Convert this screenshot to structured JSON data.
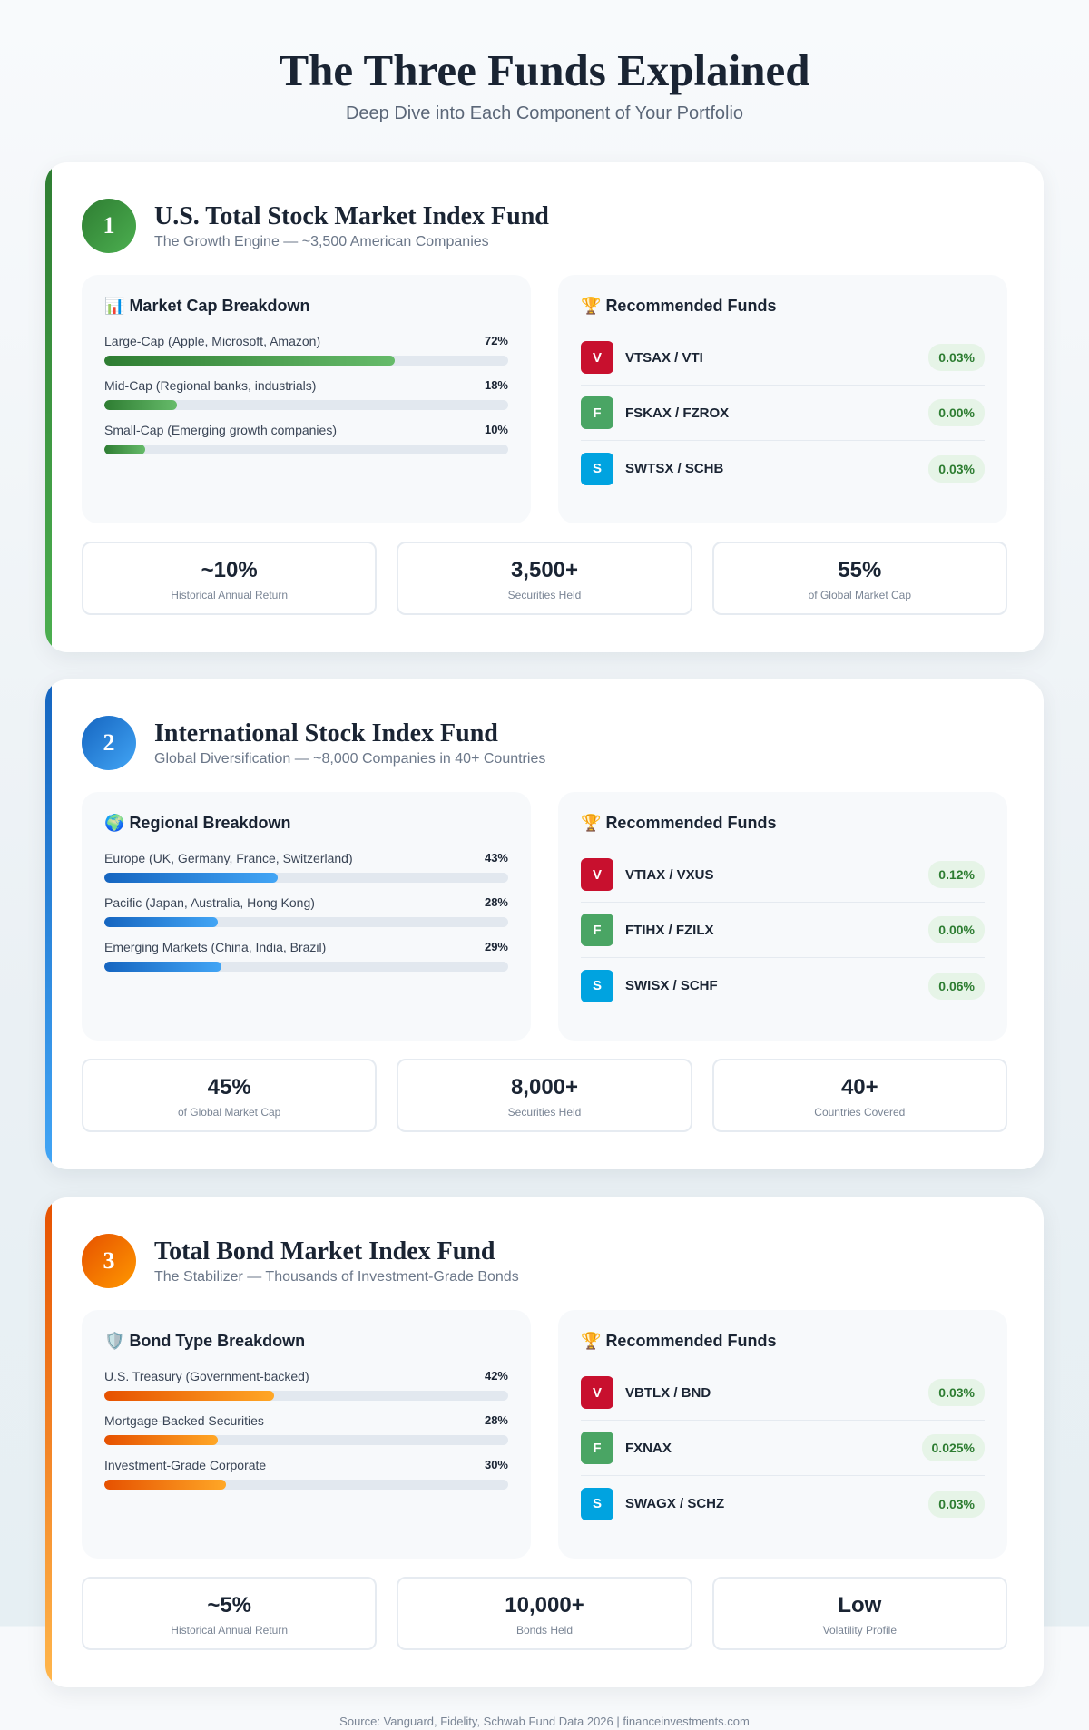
{
  "header": {
    "title": "The Three Funds Explained",
    "subtitle": "Deep Dive into Each Component of Your Portfolio"
  },
  "cards": [
    {
      "number": "1",
      "title": "U.S. Total Stock Market Index Fund",
      "subtitle": "The Growth Engine — ~3,500 American Companies",
      "accent": "#2e7d32",
      "breakdown": {
        "icon": "📊",
        "title": "Market Cap Breakdown",
        "items": [
          {
            "label": "Large-Cap (Apple, Microsoft, Amazon)",
            "value": "72%",
            "pct": 72
          },
          {
            "label": "Mid-Cap (Regional banks, industrials)",
            "value": "18%",
            "pct": 18
          },
          {
            "label": "Small-Cap (Emerging growth companies)",
            "value": "10%",
            "pct": 10
          }
        ]
      },
      "funds": {
        "icon": "🏆",
        "title": "Recommended Funds",
        "items": [
          {
            "badge": "V",
            "name": "VTSAX / VTI",
            "fee": "0.03%"
          },
          {
            "badge": "F",
            "name": "FSKAX / FZROX",
            "fee": "0.00%"
          },
          {
            "badge": "S",
            "name": "SWTSX / SCHB",
            "fee": "0.03%"
          }
        ]
      },
      "stats": [
        {
          "value": "~10%",
          "label": "Historical Annual Return"
        },
        {
          "value": "3,500+",
          "label": "Securities Held"
        },
        {
          "value": "55%",
          "label": "of Global Market Cap"
        }
      ]
    },
    {
      "number": "2",
      "title": "International Stock Index Fund",
      "subtitle": "Global Diversification — ~8,000 Companies in 40+ Countries",
      "accent": "#1e6fd0",
      "breakdown": {
        "icon": "🌍",
        "title": "Regional Breakdown",
        "items": [
          {
            "label": "Europe (UK, Germany, France, Switzerland)",
            "value": "43%",
            "pct": 43
          },
          {
            "label": "Pacific (Japan, Australia, Hong Kong)",
            "value": "28%",
            "pct": 28
          },
          {
            "label": "Emerging Markets (China, India, Brazil)",
            "value": "29%",
            "pct": 29
          }
        ]
      },
      "funds": {
        "icon": "🏆",
        "title": "Recommended Funds",
        "items": [
          {
            "badge": "V",
            "name": "VTIAX / VXUS",
            "fee": "0.12%"
          },
          {
            "badge": "F",
            "name": "FTIHX / FZILX",
            "fee": "0.00%"
          },
          {
            "badge": "S",
            "name": "SWISX / SCHF",
            "fee": "0.06%"
          }
        ]
      },
      "stats": [
        {
          "value": "45%",
          "label": "of Global Market Cap"
        },
        {
          "value": "8,000+",
          "label": "Securities Held"
        },
        {
          "value": "40+",
          "label": "Countries Covered"
        }
      ]
    },
    {
      "number": "3",
      "title": "Total Bond Market Index Fund",
      "subtitle": "The Stabilizer — Thousands of Investment-Grade Bonds",
      "accent": "#e65100",
      "breakdown": {
        "icon": "🛡️",
        "title": "Bond Type Breakdown",
        "items": [
          {
            "label": "U.S. Treasury (Government-backed)",
            "value": "42%",
            "pct": 42
          },
          {
            "label": "Mortgage-Backed Securities",
            "value": "28%",
            "pct": 28
          },
          {
            "label": "Investment-Grade Corporate",
            "value": "30%",
            "pct": 30
          }
        ]
      },
      "funds": {
        "icon": "🏆",
        "title": "Recommended Funds",
        "items": [
          {
            "badge": "V",
            "name": "VBTLX / BND",
            "fee": "0.03%"
          },
          {
            "badge": "F",
            "name": "FXNAX",
            "fee": "0.025%"
          },
          {
            "badge": "S",
            "name": "SWAGX / SCHZ",
            "fee": "0.03%"
          }
        ]
      },
      "stats": [
        {
          "value": "~5%",
          "label": "Historical Annual Return"
        },
        {
          "value": "10,000+",
          "label": "Bonds Held"
        },
        {
          "value": "Low",
          "label": "Volatility Profile"
        }
      ]
    }
  ],
  "badge_colors": {
    "V": "#c8102e",
    "F": "#4aa564",
    "S": "#00a3e0"
  },
  "footer": "Source: Vanguard, Fidelity, Schwab Fund Data 2026 | financeinvestments.com"
}
